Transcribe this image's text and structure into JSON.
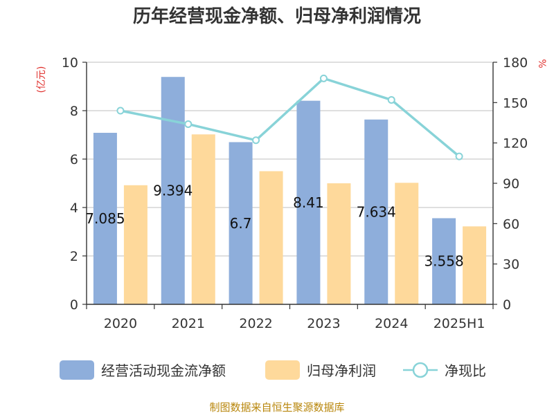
{
  "chart_data": {
    "type": "bar",
    "title": "历年经营现金净额、归母净利润情况",
    "categories": [
      "2020",
      "2021",
      "2022",
      "2023",
      "2024",
      "2025H1"
    ],
    "series": [
      {
        "name": "经营活动现金流净额",
        "type": "bar",
        "axis": "left",
        "color": "#8eaedb",
        "values": [
          7.085,
          9.394,
          6.7,
          8.41,
          7.634,
          3.558
        ],
        "labels": [
          "7.085",
          "9.394",
          "6.7",
          "8.41",
          "7.634",
          "3.558"
        ]
      },
      {
        "name": "归母净利润",
        "type": "bar",
        "axis": "left",
        "color": "#fed99b",
        "values": [
          4.92,
          7.02,
          5.5,
          5.0,
          5.02,
          3.22
        ]
      },
      {
        "name": "净现比",
        "type": "line",
        "axis": "right",
        "color": "#88d3d8",
        "values": [
          144,
          134,
          122,
          168,
          152,
          110
        ]
      }
    ],
    "left_axis": {
      "unit": "(亿元)",
      "min": 0,
      "max": 10,
      "ticks": [
        0,
        2,
        4,
        6,
        8,
        10
      ]
    },
    "right_axis": {
      "unit": "%",
      "min": 0,
      "max": 180,
      "ticks": [
        0,
        30,
        60,
        90,
        120,
        150,
        180
      ]
    },
    "grid": true,
    "legend_position": "bottom"
  },
  "source": "制图数据来自恒生聚源数据库"
}
